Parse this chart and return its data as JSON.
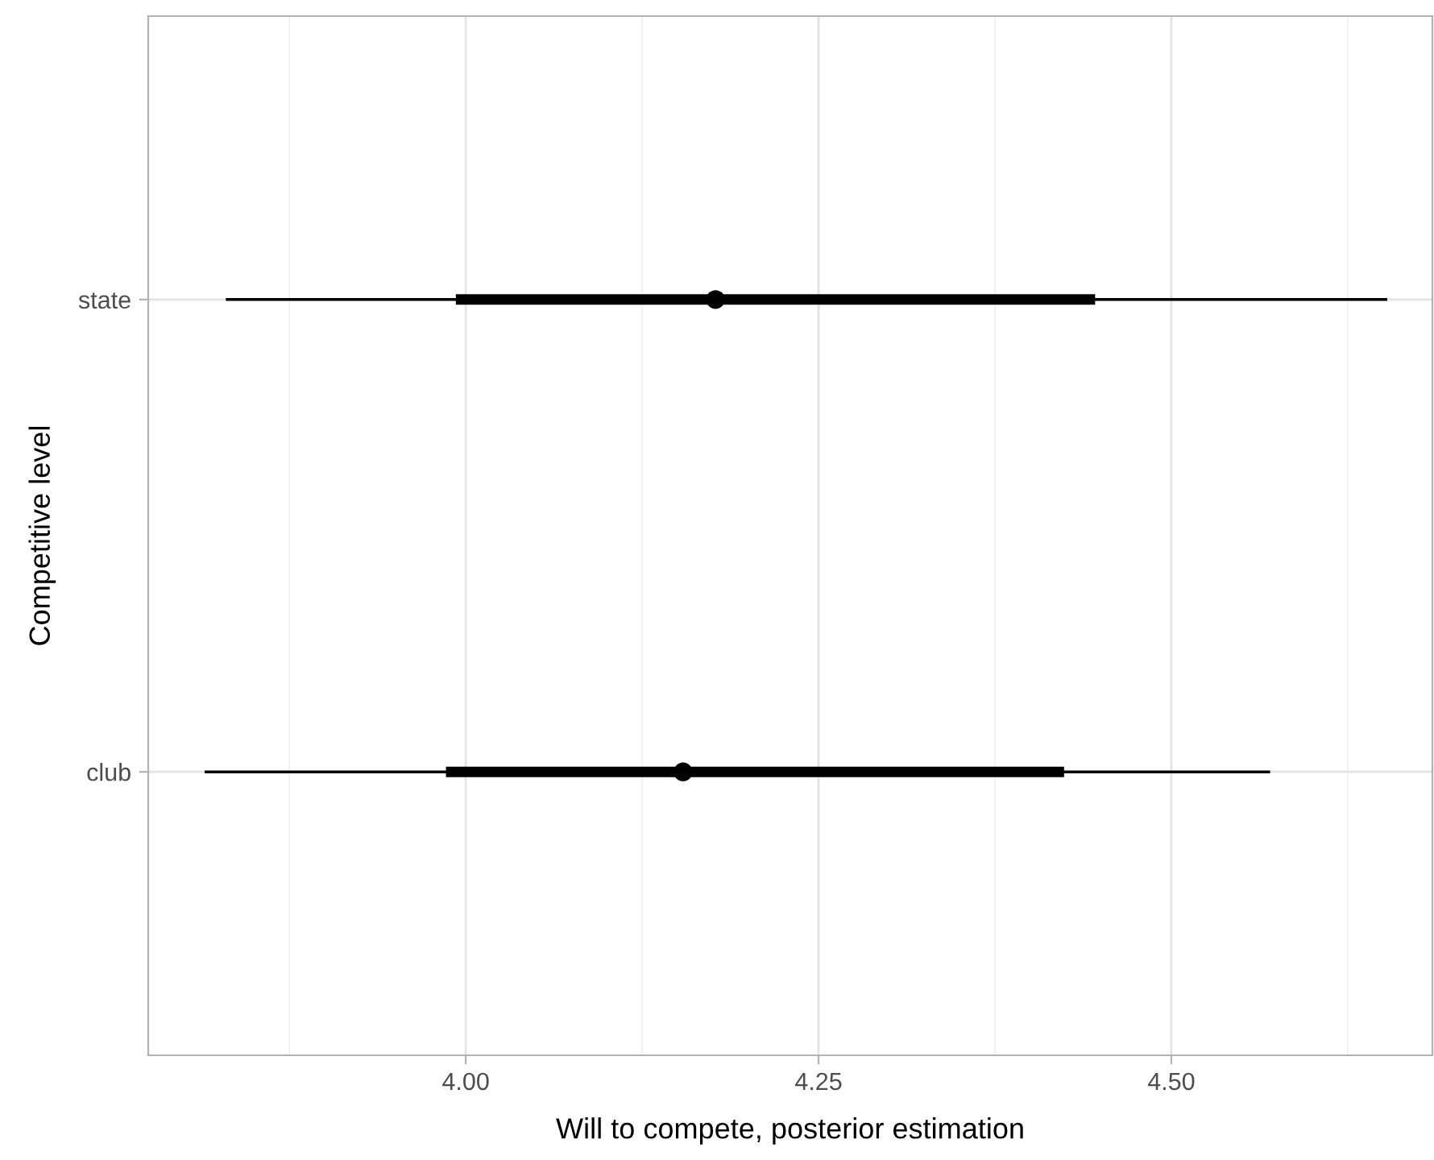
{
  "chart_data": {
    "type": "scatter",
    "orientation": "horizontal",
    "xlabel": "Will to compete, posterior estimation",
    "ylabel": "Competitive level",
    "categories": [
      "state",
      "club"
    ],
    "series": [
      {
        "type": "bar",
        "color": "#000000",
        "base": [
          3.993,
          3.986
        ],
        "values": [
          0.453,
          0.438
        ]
      },
      {
        "color": "#000000",
        "marker": "circle",
        "values": [
          4.177,
          4.154
        ],
        "errors": [
          [
            3.83,
            4.653
          ],
          [
            3.815,
            4.57
          ]
        ]
      }
    ],
    "xlim": [
      3.775,
      4.685
    ],
    "xticks": [
      {
        "value": 4.0,
        "label": "4.00"
      },
      {
        "value": 4.25,
        "label": "4.25"
      },
      {
        "value": 4.5,
        "label": "4.50"
      }
    ],
    "grid": true
  }
}
